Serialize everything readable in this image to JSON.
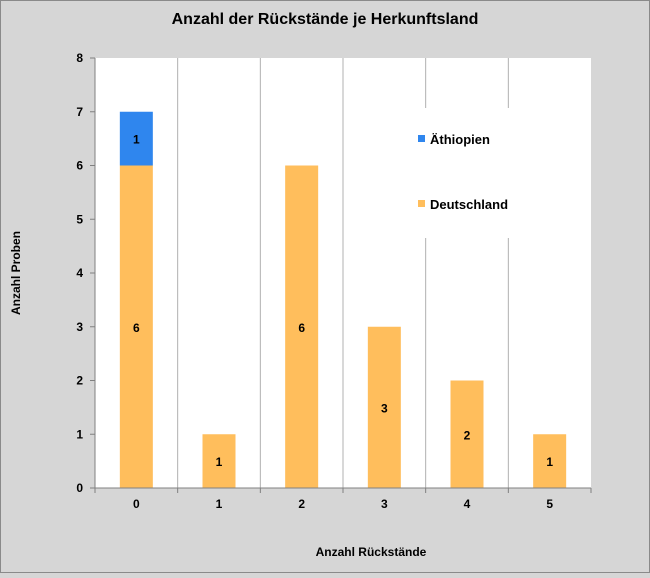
{
  "chart_data": {
    "type": "bar",
    "stacked": true,
    "title": "Anzahl der Rückstände je Herkunftsland",
    "xlabel": "Anzahl Rückstände",
    "ylabel": "Anzahl Proben",
    "categories": [
      "0",
      "1",
      "2",
      "3",
      "4",
      "5"
    ],
    "ylim": [
      0,
      8
    ],
    "yticks": [
      "0",
      "1",
      "2",
      "3",
      "4",
      "5",
      "6",
      "7",
      "8"
    ],
    "grid": true,
    "legend_position": "right",
    "series": [
      {
        "name": "Deutschland",
        "values": [
          6,
          1,
          6,
          3,
          2,
          1
        ],
        "color": "#ffbe5c"
      },
      {
        "name": "Äthiopien",
        "values": [
          1,
          0,
          0,
          0,
          0,
          0
        ],
        "color": "#2f86ee"
      }
    ]
  },
  "colors": {
    "background": "#d6d6d6",
    "plot_background": "#ffffff",
    "grid": "#b0b0b0",
    "axis": "#808080"
  }
}
